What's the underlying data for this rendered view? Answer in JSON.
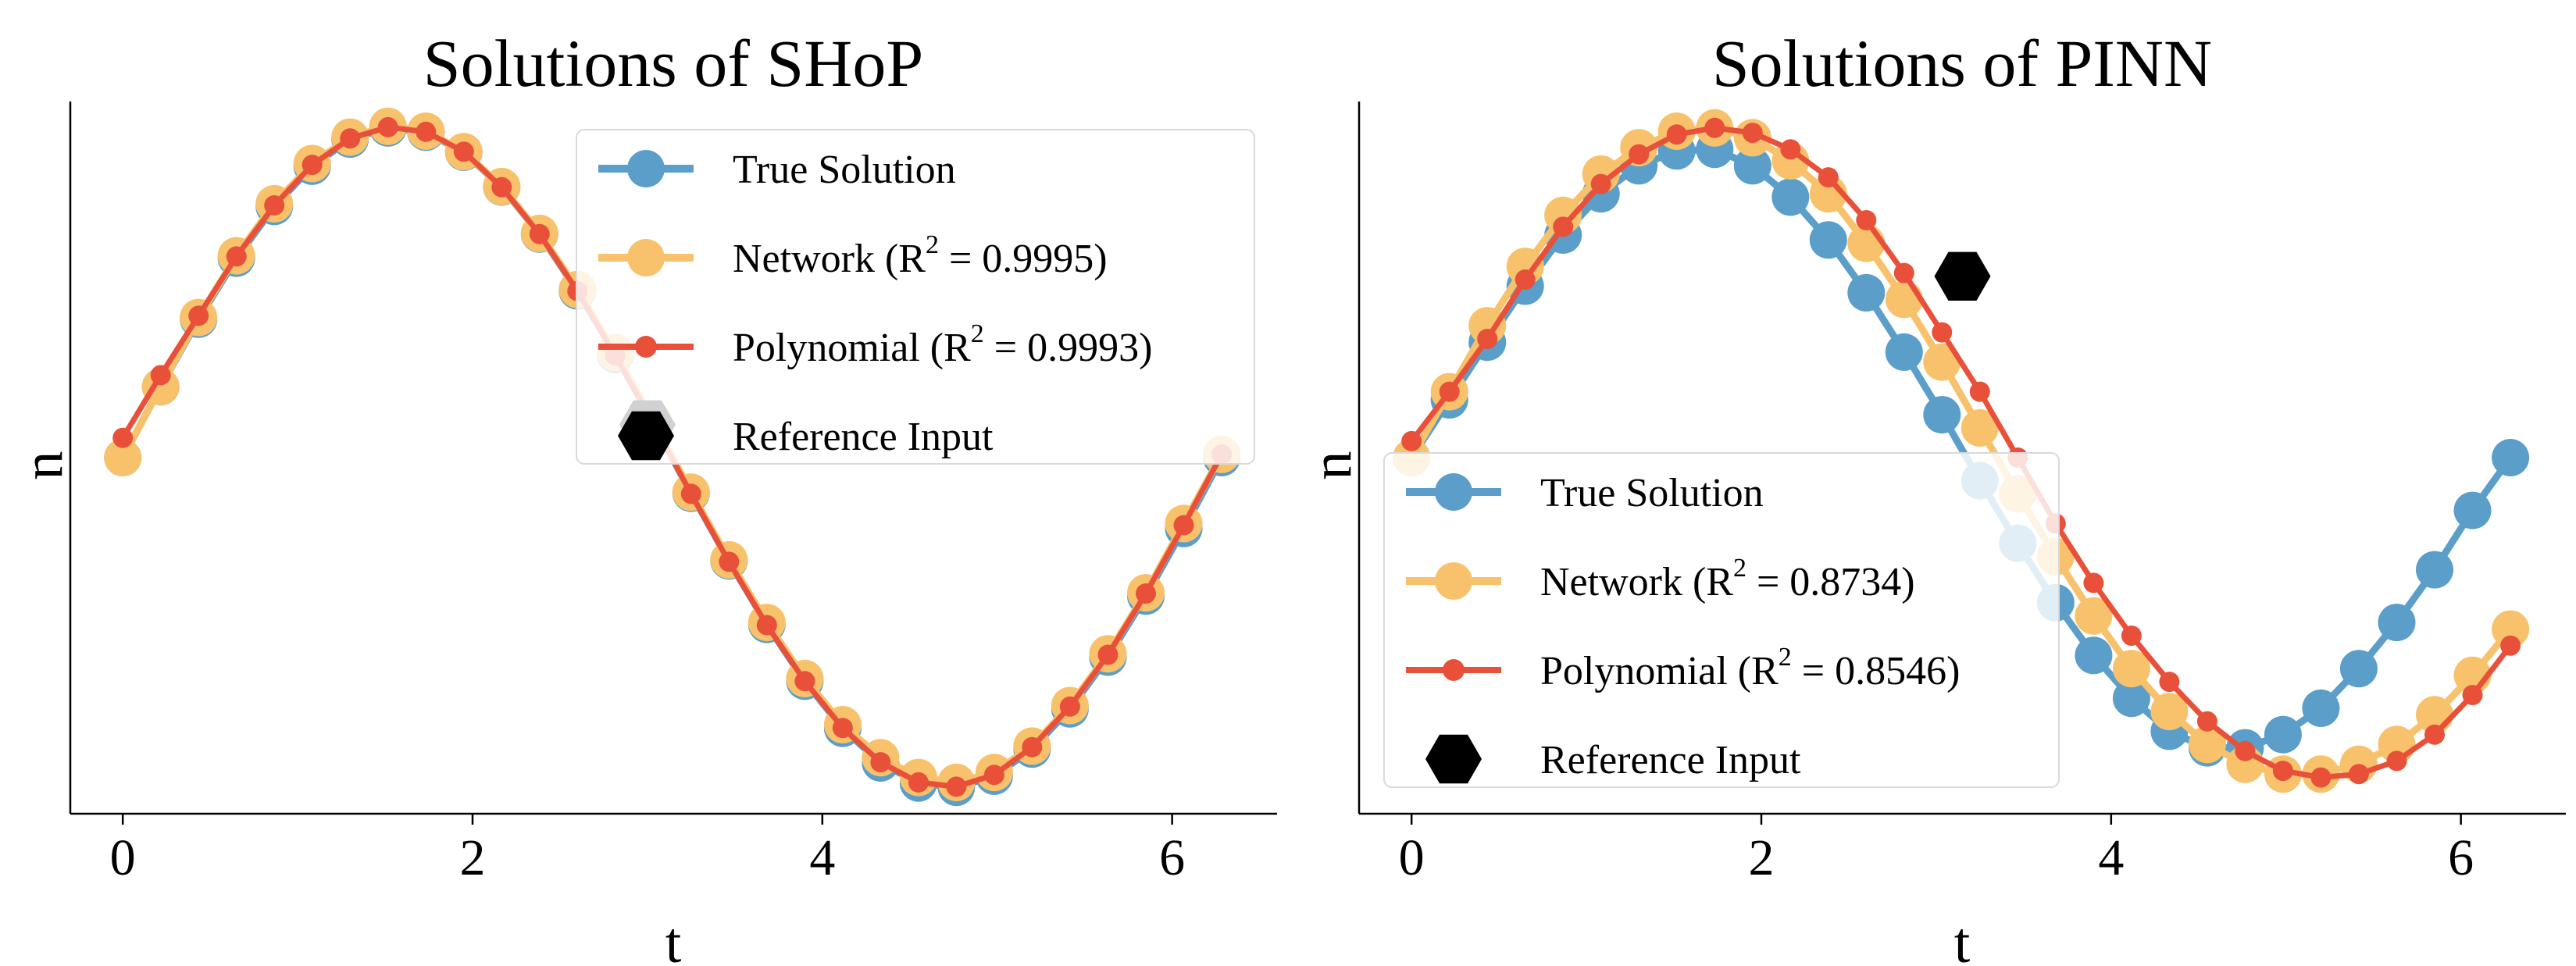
{
  "chart_data": [
    {
      "type": "line",
      "title": "Solutions of SHoP",
      "xlabel": "t",
      "ylabel": "u",
      "xlim": [
        -0.3,
        6.6
      ],
      "ylim": [
        -1.08,
        1.08
      ],
      "xticks": [
        "0",
        "2",
        "4",
        "6"
      ],
      "xtick_values": [
        0,
        2,
        4,
        6
      ],
      "yticks_shown": false,
      "grid": false,
      "legend_position": "upper-right",
      "reference_input": {
        "label": "Reference Input",
        "x": 3.0,
        "y": 0.1
      },
      "series": [
        {
          "name": "True Solution",
          "color": "#5a9ec9",
          "marker": "circle",
          "x": [
            0,
            0.2166,
            0.4333,
            0.6499,
            0.8666,
            1.0832,
            1.2999,
            1.5165,
            1.7332,
            1.9498,
            2.1665,
            2.3831,
            2.5998,
            2.8164,
            3.0331,
            3.2497,
            3.4664,
            3.683,
            3.8997,
            4.1163,
            4.333,
            4.5496,
            4.7663,
            4.9829,
            5.1996,
            5.4162,
            5.6329,
            5.8495,
            6.0662,
            6.2832
          ],
          "y": [
            0,
            0.215,
            0.42,
            0.605,
            0.762,
            0.884,
            0.966,
            1.0,
            0.987,
            0.926,
            0.821,
            0.678,
            0.506,
            0.313,
            0.108,
            -0.108,
            -0.313,
            -0.506,
            -0.678,
            -0.821,
            -0.926,
            -0.987,
            -1.0,
            -0.966,
            -0.884,
            -0.762,
            -0.605,
            -0.42,
            -0.215,
            0.0
          ]
        },
        {
          "name": "Network (R² = 0.9995)",
          "color": "#f7c26b",
          "marker": "circle",
          "x": [
            0,
            0.2166,
            0.4333,
            0.6499,
            0.8666,
            1.0832,
            1.2999,
            1.5165,
            1.7332,
            1.9498,
            2.1665,
            2.3831,
            2.5998,
            2.8164,
            3.0331,
            3.2497,
            3.4664,
            3.683,
            3.8997,
            4.1163,
            4.333,
            4.5496,
            4.7663,
            4.9829,
            5.1996,
            5.4162,
            5.6329,
            5.8495,
            6.0662,
            6.2832
          ],
          "y": [
            0.0,
            0.215,
            0.425,
            0.612,
            0.77,
            0.892,
            0.972,
            1.005,
            0.99,
            0.928,
            0.822,
            0.68,
            0.51,
            0.318,
            0.112,
            -0.105,
            -0.31,
            -0.5,
            -0.67,
            -0.81,
            -0.91,
            -0.97,
            -0.985,
            -0.955,
            -0.875,
            -0.752,
            -0.595,
            -0.41,
            -0.2,
            0.01
          ]
        },
        {
          "name": "Polynomial (R² = 0.9993)",
          "color": "#e8503a",
          "marker": "circle-small",
          "x": [
            0,
            0.2166,
            0.4333,
            0.6499,
            0.8666,
            1.0832,
            1.2999,
            1.5165,
            1.7332,
            1.9498,
            2.1665,
            2.3831,
            2.5998,
            2.8164,
            3.0331,
            3.2497,
            3.4664,
            3.683,
            3.8997,
            4.1163,
            4.333,
            4.5496,
            4.7663,
            4.9829,
            5.1996,
            5.4162,
            5.6329,
            5.8495,
            6.0662,
            6.2832
          ],
          "y": [
            0.06,
            0.25,
            0.43,
            0.61,
            0.765,
            0.888,
            0.968,
            1.002,
            0.988,
            0.928,
            0.82,
            0.678,
            0.505,
            0.31,
            0.104,
            -0.11,
            -0.316,
            -0.508,
            -0.678,
            -0.82,
            -0.924,
            -0.985,
            -0.998,
            -0.962,
            -0.878,
            -0.755,
            -0.598,
            -0.412,
            -0.205,
            0.01
          ]
        }
      ]
    },
    {
      "type": "line",
      "title": "Solutions of PINN",
      "xlabel": "t",
      "ylabel": "u",
      "xlim": [
        -0.3,
        6.6
      ],
      "ylim": [
        -1.08,
        1.08
      ],
      "xticks": [
        "0",
        "2",
        "4",
        "6"
      ],
      "xtick_values": [
        0,
        2,
        4,
        6
      ],
      "yticks_shown": false,
      "grid": false,
      "legend_position": "lower-left",
      "reference_input": {
        "label": "Reference Input",
        "x": 3.15,
        "y": 0.55
      },
      "series": [
        {
          "name": "True Solution",
          "color": "#5a9ec9",
          "marker": "circle",
          "x": [
            0,
            0.2166,
            0.4333,
            0.6499,
            0.8666,
            1.0832,
            1.2999,
            1.5165,
            1.7332,
            1.9498,
            2.1665,
            2.3831,
            2.5998,
            2.8164,
            3.0331,
            3.2497,
            3.4664,
            3.683,
            3.8997,
            4.1163,
            4.333,
            4.5496,
            4.7663,
            4.9829,
            5.1996,
            5.4162,
            5.6329,
            5.8495,
            6.0662,
            6.2832
          ],
          "y": [
            0.0,
            0.175,
            0.35,
            0.52,
            0.675,
            0.8,
            0.885,
            0.93,
            0.935,
            0.885,
            0.79,
            0.66,
            0.5,
            0.32,
            0.13,
            -0.07,
            -0.26,
            -0.44,
            -0.6,
            -0.73,
            -0.83,
            -0.88,
            -0.88,
            -0.84,
            -0.76,
            -0.64,
            -0.5,
            -0.34,
            -0.16,
            0.0
          ]
        },
        {
          "name": "Network (R² = 0.8734)",
          "color": "#f7c26b",
          "marker": "circle",
          "x": [
            0,
            0.2166,
            0.4333,
            0.6499,
            0.8666,
            1.0832,
            1.2999,
            1.5165,
            1.7332,
            1.9498,
            2.1665,
            2.3831,
            2.5998,
            2.8164,
            3.0331,
            3.2497,
            3.4664,
            3.683,
            3.8997,
            4.1163,
            4.333,
            4.5496,
            4.7663,
            4.9829,
            5.1996,
            5.4162,
            5.6329,
            5.8495,
            6.0662,
            6.2832
          ],
          "y": [
            0.0,
            0.2,
            0.4,
            0.58,
            0.735,
            0.86,
            0.94,
            0.99,
            1.0,
            0.97,
            0.9,
            0.8,
            0.65,
            0.48,
            0.29,
            0.09,
            -0.11,
            -0.3,
            -0.48,
            -0.64,
            -0.77,
            -0.87,
            -0.93,
            -0.96,
            -0.96,
            -0.93,
            -0.87,
            -0.78,
            -0.66,
            -0.52
          ]
        },
        {
          "name": "Polynomial (R² = 0.8546)",
          "color": "#e8503a",
          "marker": "circle-small",
          "x": [
            0,
            0.2166,
            0.4333,
            0.6499,
            0.8666,
            1.0832,
            1.2999,
            1.5165,
            1.7332,
            1.9498,
            2.1665,
            2.3831,
            2.5998,
            2.8164,
            3.0331,
            3.2497,
            3.4664,
            3.683,
            3.8997,
            4.1163,
            4.333,
            4.5496,
            4.7663,
            4.9829,
            5.1996,
            5.4162,
            5.6329,
            5.8495,
            6.0662,
            6.2832
          ],
          "y": [
            0.05,
            0.2,
            0.36,
            0.54,
            0.7,
            0.83,
            0.92,
            0.98,
            1.0,
            0.985,
            0.935,
            0.85,
            0.72,
            0.56,
            0.38,
            0.2,
            0.0,
            -0.2,
            -0.38,
            -0.54,
            -0.68,
            -0.8,
            -0.89,
            -0.95,
            -0.97,
            -0.96,
            -0.92,
            -0.84,
            -0.72,
            -0.57
          ]
        }
      ]
    }
  ],
  "legends": [
    {
      "items": [
        {
          "kind": "line-marker",
          "color": "#5a9ec9",
          "label": "True Solution"
        },
        {
          "kind": "line-marker",
          "color": "#f7c26b",
          "label_prefix": "Network (R",
          "label_sup": "2",
          "label_suffix": " = 0.9995)"
        },
        {
          "kind": "line-marker-small",
          "color": "#e8503a",
          "label_prefix": "Polynomial (R",
          "label_sup": "2",
          "label_suffix": " = 0.9993)"
        },
        {
          "kind": "hexagon",
          "color": "#000000",
          "label": "Reference Input"
        }
      ]
    },
    {
      "items": [
        {
          "kind": "line-marker",
          "color": "#5a9ec9",
          "label": "True Solution"
        },
        {
          "kind": "line-marker",
          "color": "#f7c26b",
          "label_prefix": "Network (R",
          "label_sup": "2",
          "label_suffix": " = 0.8734)"
        },
        {
          "kind": "line-marker-small",
          "color": "#e8503a",
          "label_prefix": "Polynomial (R",
          "label_sup": "2",
          "label_suffix": " = 0.8546)"
        },
        {
          "kind": "hexagon",
          "color": "#000000",
          "label": "Reference Input"
        }
      ]
    }
  ]
}
